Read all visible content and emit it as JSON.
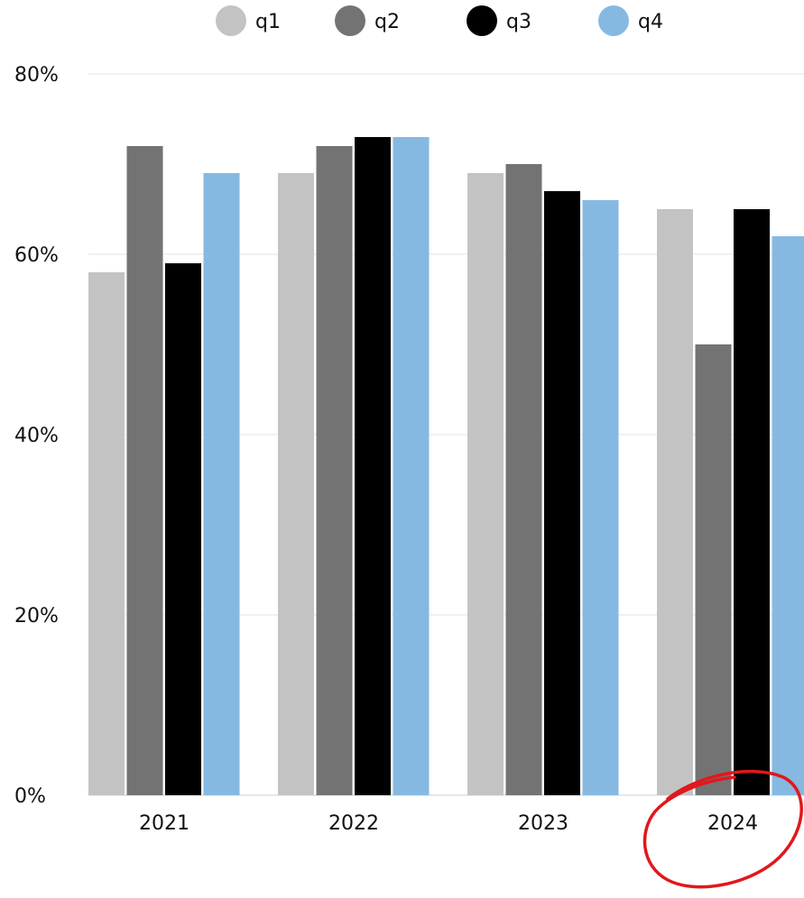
{
  "chart_data": {
    "type": "bar",
    "categories": [
      "2021",
      "2022",
      "2023",
      "2024"
    ],
    "series": [
      {
        "name": "q1",
        "values": [
          58,
          69,
          69,
          65
        ],
        "color": "#c4c3c4"
      },
      {
        "name": "q2",
        "values": [
          72,
          72,
          70,
          50
        ],
        "color": "#737373"
      },
      {
        "name": "q3",
        "values": [
          59,
          73,
          67,
          65
        ],
        "color": "#000000"
      },
      {
        "name": "q4",
        "values": [
          69,
          73,
          66,
          62
        ],
        "color": "#86b9e2"
      }
    ],
    "yticks": [
      "0%",
      "20%",
      "40%",
      "60%",
      "80%"
    ],
    "ylim": [
      0,
      80
    ],
    "grid": true,
    "legend_position": "top",
    "annotation": {
      "type": "hand-drawn-circle",
      "target": "2024",
      "color": "#e0181c"
    }
  }
}
